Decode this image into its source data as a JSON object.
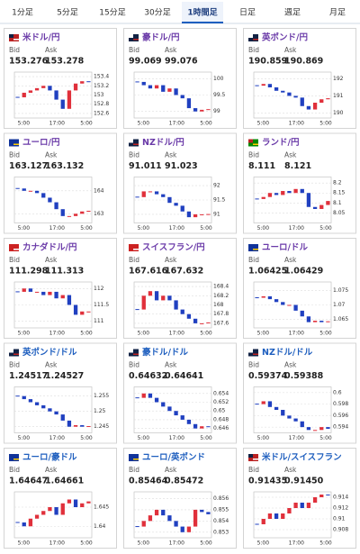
{
  "tabs": [
    {
      "label": "1分足"
    },
    {
      "label": "5分足"
    },
    {
      "label": "15分足"
    },
    {
      "label": "30分足"
    },
    {
      "label": "1時間足",
      "active": true
    },
    {
      "label": "日足"
    },
    {
      "label": "週足"
    },
    {
      "label": "月足"
    }
  ],
  "tiles": [
    {
      "name": "米ドル/円",
      "bid_label": "Bid",
      "ask_label": "Ask",
      "bid": "153.276",
      "ask": "153.278",
      "chart": {
        "type": "candlestick",
        "x_labels": [
          "5:00",
          "17:00",
          "5:00"
        ],
        "ylim": [
          152.5,
          153.5
        ],
        "yticks": [
          153.4,
          153.2,
          153,
          152.8,
          152.6
        ],
        "closes": [
          152.95,
          153.05,
          153.1,
          153.15,
          153.2,
          153.1,
          152.9,
          152.7,
          153.1,
          153.25,
          153.3,
          153.28
        ]
      }
    },
    {
      "name": "豪ドル/円",
      "bid_label": "Bid",
      "ask_label": "Ask",
      "bid": "99.069",
      "ask": "99.076",
      "chart": {
        "type": "candlestick",
        "x_labels": [
          "5:00",
          "17:00",
          "5:00"
        ],
        "ylim": [
          98.8,
          100.2
        ],
        "yticks": [
          100,
          99.5,
          99
        ],
        "closes": [
          99.9,
          99.8,
          99.7,
          99.8,
          99.6,
          99.7,
          99.5,
          99.4,
          99.1,
          99.0,
          99.05,
          99.07
        ]
      }
    },
    {
      "name": "英ポンド/円",
      "bid_label": "Bid",
      "ask_label": "Ask",
      "bid": "190.859",
      "ask": "190.869",
      "chart": {
        "type": "candlestick",
        "x_labels": [
          "5:00",
          "17:00",
          "5:00"
        ],
        "ylim": [
          189.7,
          192.4
        ],
        "yticks": [
          192,
          191,
          190
        ],
        "closes": [
          191.6,
          191.7,
          191.5,
          191.3,
          191.2,
          191.0,
          190.9,
          190.4,
          190.2,
          190.6,
          190.8,
          190.86
        ]
      }
    },
    {
      "name": "ユーロ/円",
      "bid_label": "Bid",
      "ask_label": "Ask",
      "bid": "163.127",
      "ask": "163.132",
      "chart": {
        "type": "candlestick",
        "x_labels": [
          "5:00",
          "17:00",
          "5:00"
        ],
        "ylim": [
          162.6,
          164.6
        ],
        "yticks": [
          164,
          163
        ],
        "closes": [
          164.1,
          164.0,
          164.0,
          163.9,
          163.7,
          163.5,
          163.2,
          162.9,
          162.9,
          163.0,
          163.1,
          163.13
        ]
      }
    },
    {
      "name": "NZドル/円",
      "bid_label": "Bid",
      "ask_label": "Ask",
      "bid": "91.011",
      "ask": "91.023",
      "chart": {
        "type": "candlestick",
        "x_labels": [
          "5:00",
          "17:00",
          "5:00"
        ],
        "ylim": [
          90.7,
          92.3
        ],
        "yticks": [
          92,
          91.5,
          91
        ],
        "closes": [
          91.6,
          91.8,
          91.8,
          91.7,
          91.6,
          91.4,
          91.3,
          91.1,
          90.9,
          91.0,
          91.0,
          91.01
        ]
      }
    },
    {
      "name": "ランド/円",
      "bid_label": "Bid",
      "ask_label": "Ask",
      "bid": "8.111",
      "ask": "8.121",
      "chart": {
        "type": "candlestick",
        "x_labels": [
          "5:00",
          "17:00",
          "5:00"
        ],
        "ylim": [
          8.0,
          8.23
        ],
        "yticks": [
          8.2,
          8.15,
          8.1,
          8.05
        ],
        "closes": [
          8.12,
          8.13,
          8.15,
          8.14,
          8.16,
          8.15,
          8.17,
          8.15,
          8.08,
          8.07,
          8.09,
          8.11
        ]
      }
    },
    {
      "name": "カナダドル/円",
      "bid_label": "Bid",
      "ask_label": "Ask",
      "bid": "111.298",
      "ask": "111.313",
      "chart": {
        "type": "candlestick",
        "x_labels": [
          "5:00",
          "17:00",
          "5:00"
        ],
        "ylim": [
          110.8,
          112.2
        ],
        "yticks": [
          112,
          111.5,
          111
        ],
        "closes": [
          111.9,
          112.0,
          111.9,
          111.9,
          111.8,
          111.9,
          111.7,
          111.8,
          111.5,
          111.2,
          111.3,
          111.3
        ]
      }
    },
    {
      "name": "スイスフラン/円",
      "bid_label": "Bid",
      "ask_label": "Ask",
      "bid": "167.616",
      "ask": "167.632",
      "chart": {
        "type": "candlestick",
        "x_labels": [
          "5:00",
          "17:00",
          "5:00"
        ],
        "ylim": [
          167.5,
          168.5
        ],
        "yticks": [
          168.4,
          168.2,
          168,
          167.8,
          167.6
        ],
        "closes": [
          167.9,
          168.2,
          168.3,
          168.1,
          168.2,
          168.1,
          167.9,
          167.8,
          167.7,
          167.6,
          167.6,
          167.62
        ]
      }
    },
    {
      "name": "ユーロ/ドル",
      "bid_label": "Bid",
      "ask_label": "Ask",
      "bid": "1.06425",
      "ask": "1.06429",
      "chart": {
        "type": "candlestick",
        "x_labels": [
          "5:00",
          "17:00",
          "5:00"
        ],
        "ylim": [
          1.062,
          1.078
        ],
        "yticks": [
          1.075,
          1.07,
          1.065
        ],
        "closes": [
          1.0725,
          1.073,
          1.072,
          1.071,
          1.07,
          1.07,
          1.068,
          1.066,
          1.064,
          1.0645,
          1.064,
          1.0643
        ]
      }
    },
    {
      "name": "英ポンド/ドル",
      "bid_label": "Bid",
      "ask_label": "Ask",
      "bid": "1.24517",
      "ask": "1.24527",
      "chart": {
        "type": "candlestick",
        "x_labels": [
          "5:00",
          "17:00",
          "5:00"
        ],
        "ylim": [
          1.243,
          1.258
        ],
        "yticks": [
          1.255,
          1.25,
          1.245
        ],
        "closes": [
          1.255,
          1.254,
          1.253,
          1.252,
          1.251,
          1.25,
          1.249,
          1.247,
          1.245,
          1.2455,
          1.245,
          1.2452
        ]
      }
    },
    {
      "name": "豪ドル/ドル",
      "bid_label": "Bid",
      "ask_label": "Ask",
      "bid": "0.64632",
      "ask": "0.64641",
      "chart": {
        "type": "candlestick",
        "x_labels": [
          "5:00",
          "17:00",
          "5:00"
        ],
        "ylim": [
          0.645,
          0.6555
        ],
        "yticks": [
          0.654,
          0.652,
          0.65,
          0.648,
          0.646
        ],
        "closes": [
          0.653,
          0.654,
          0.653,
          0.652,
          0.651,
          0.65,
          0.649,
          0.648,
          0.647,
          0.646,
          0.6465,
          0.6463
        ]
      }
    },
    {
      "name": "NZドル/ドル",
      "bid_label": "Bid",
      "ask_label": "Ask",
      "bid": "0.59374",
      "ask": "0.59388",
      "chart": {
        "type": "candlestick",
        "x_labels": [
          "5:00",
          "17:00",
          "5:00"
        ],
        "ylim": [
          0.593,
          0.601
        ],
        "yticks": [
          0.6,
          0.598,
          0.596,
          0.594
        ],
        "closes": [
          0.598,
          0.5985,
          0.5975,
          0.597,
          0.596,
          0.5955,
          0.595,
          0.594,
          0.5935,
          0.5935,
          0.594,
          0.5937
        ]
      }
    },
    {
      "name": "ユーロ/豪ドル",
      "bid_label": "Bid",
      "ask_label": "Ask",
      "bid": "1.64647",
      "ask": "1.64661",
      "chart": {
        "type": "candlestick",
        "x_labels": [
          "5:00",
          "17:00",
          "5:00"
        ],
        "ylim": [
          1.637,
          1.649
        ],
        "yticks": [
          1.645,
          1.64
        ],
        "closes": [
          1.641,
          1.64,
          1.642,
          1.643,
          1.644,
          1.645,
          1.643,
          1.646,
          1.647,
          1.645,
          1.646,
          1.6465
        ]
      }
    },
    {
      "name": "ユーロ/英ポンド",
      "bid_label": "Bid",
      "ask_label": "Ask",
      "bid": "0.85464",
      "ask": "0.85472",
      "chart": {
        "type": "candlestick",
        "x_labels": [
          "5:00",
          "17:00",
          "5:00"
        ],
        "ylim": [
          0.8525,
          0.8566
        ],
        "yticks": [
          0.856,
          0.855,
          0.854,
          0.853
        ],
        "closes": [
          0.8535,
          0.854,
          0.8545,
          0.855,
          0.8545,
          0.854,
          0.8535,
          0.853,
          0.8535,
          0.855,
          0.8548,
          0.8546
        ]
      }
    },
    {
      "name": "米ドル/スイスフラン",
      "bid_label": "Bid",
      "ask_label": "Ask",
      "bid": "0.91435",
      "ask": "0.91450",
      "chart": {
        "type": "candlestick",
        "x_labels": [
          "5:00",
          "17:00",
          "5:00"
        ],
        "ylim": [
          0.9065,
          0.915
        ],
        "yticks": [
          0.914,
          0.912,
          0.91,
          0.908
        ],
        "closes": [
          0.909,
          0.91,
          0.911,
          0.91,
          0.911,
          0.912,
          0.913,
          0.912,
          0.913,
          0.914,
          0.9145,
          0.9144
        ]
      }
    }
  ]
}
